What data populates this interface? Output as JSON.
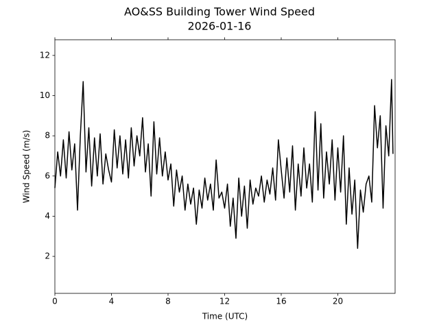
{
  "chart_data": {
    "type": "line",
    "title": "AO&SS Building Tower Wind Speed",
    "subtitle": "2026-01-16",
    "x_label": "Time (UTC)",
    "y_label": "Wind Speed (m/s)",
    "xlim": [
      0,
      24.05
    ],
    "ylim": [
      0.16,
      12.78
    ],
    "xticks": [
      0,
      4,
      8,
      12,
      16,
      20
    ],
    "yticks": [
      2,
      4,
      6,
      8,
      10,
      12
    ],
    "grid": false,
    "series": [
      {
        "name": "Wind Speed",
        "color": "#000000",
        "x": [
          0,
          0.2,
          0.4,
          0.6,
          0.8,
          1,
          1.2,
          1.4,
          1.6,
          1.8,
          2,
          2.2,
          2.4,
          2.6,
          2.8,
          3,
          3.2,
          3.4,
          3.6,
          3.8,
          4,
          4.2,
          4.4,
          4.6,
          4.8,
          5,
          5.2,
          5.4,
          5.6,
          5.8,
          6,
          6.2,
          6.4,
          6.6,
          6.8,
          7,
          7.2,
          7.4,
          7.6,
          7.8,
          8,
          8.2,
          8.4,
          8.6,
          8.8,
          9,
          9.2,
          9.4,
          9.6,
          9.8,
          10,
          10.2,
          10.4,
          10.6,
          10.8,
          11,
          11.2,
          11.4,
          11.6,
          11.8,
          12,
          12.2,
          12.4,
          12.6,
          12.8,
          13,
          13.2,
          13.4,
          13.6,
          13.8,
          14,
          14.2,
          14.4,
          14.6,
          14.8,
          15,
          15.2,
          15.4,
          15.6,
          15.8,
          16,
          16.2,
          16.4,
          16.6,
          16.8,
          17,
          17.2,
          17.4,
          17.6,
          17.8,
          18,
          18.2,
          18.4,
          18.6,
          18.8,
          19,
          19.2,
          19.4,
          19.6,
          19.8,
          20,
          20.2,
          20.4,
          20.6,
          20.8,
          21,
          21.2,
          21.4,
          21.6,
          21.8,
          22,
          22.2,
          22.4,
          22.6,
          22.8,
          23,
          23.2,
          23.4,
          23.6,
          23.8,
          23.9
        ],
        "values": [
          5.4,
          7.2,
          6.0,
          7.8,
          5.9,
          8.2,
          6.3,
          7.6,
          4.3,
          8.0,
          10.7,
          6.2,
          8.4,
          5.5,
          7.9,
          6.0,
          8.1,
          5.6,
          7.1,
          6.3,
          5.7,
          8.3,
          6.4,
          8.0,
          6.1,
          7.8,
          5.9,
          8.4,
          6.5,
          8.0,
          7.0,
          8.9,
          6.2,
          7.6,
          5.0,
          8.7,
          6.1,
          7.9,
          6.0,
          7.2,
          5.8,
          6.6,
          4.5,
          6.3,
          5.2,
          6.0,
          4.3,
          5.6,
          4.6,
          5.4,
          3.6,
          5.3,
          4.4,
          5.9,
          4.8,
          5.6,
          4.3,
          6.8,
          4.9,
          5.2,
          4.4,
          5.6,
          3.5,
          4.9,
          2.9,
          5.9,
          4.0,
          5.5,
          3.4,
          5.8,
          4.6,
          5.4,
          5.0,
          6.0,
          4.7,
          5.8,
          5.1,
          6.4,
          4.8,
          7.8,
          6.3,
          4.9,
          6.9,
          5.2,
          7.5,
          4.3,
          6.6,
          5.0,
          7.4,
          5.4,
          6.6,
          4.7,
          9.2,
          5.3,
          8.6,
          4.9,
          7.2,
          5.6,
          7.8,
          4.8,
          7.4,
          5.2,
          8.0,
          3.6,
          6.4,
          4.1,
          5.8,
          2.4,
          5.3,
          4.2,
          5.6,
          6.0,
          4.7,
          9.5,
          7.4,
          9.0,
          4.4,
          8.5,
          7.0,
          10.8,
          7.1
        ]
      }
    ]
  }
}
